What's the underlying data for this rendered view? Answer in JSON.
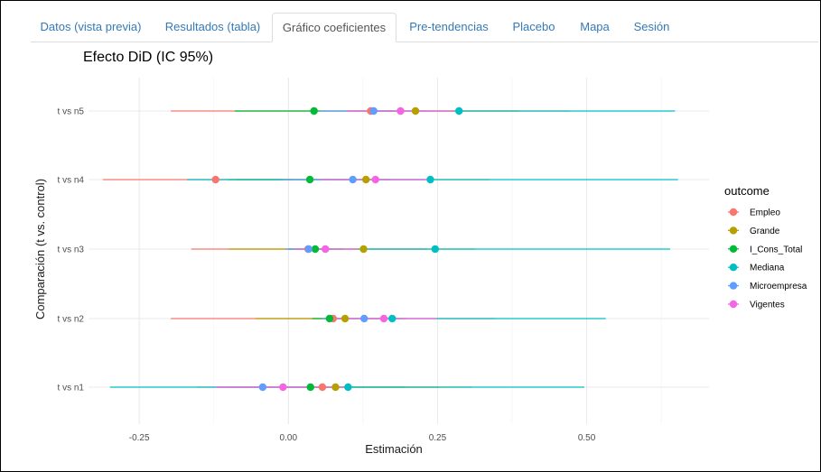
{
  "tabs": [
    {
      "label": "Datos (vista previa)",
      "active": false
    },
    {
      "label": "Resultados (tabla)",
      "active": false
    },
    {
      "label": "Gráfico coeficientes",
      "active": true
    },
    {
      "label": "Pre-tendencias",
      "active": false
    },
    {
      "label": "Placebo",
      "active": false
    },
    {
      "label": "Mapa",
      "active": false
    },
    {
      "label": "Sesión",
      "active": false
    }
  ],
  "chart_data": {
    "type": "scatter",
    "title": "Efecto DiD (IC 95%)",
    "xlabel": "Estimación",
    "ylabel": "Comparación (t vs. control)",
    "xlim": [
      -0.335,
      0.705
    ],
    "xticks": [
      -0.25,
      0.0,
      0.25,
      0.5
    ],
    "xtick_labels": [
      "-0.25",
      "0.00",
      "0.25",
      "0.50"
    ],
    "categories": [
      "t vs n5",
      "t vs n4",
      "t vs n3",
      "t vs n2",
      "t vs n1"
    ],
    "grid": true,
    "legend": {
      "title": "outcome",
      "position": "right"
    },
    "series": [
      {
        "name": "Empleo",
        "color": "#F8766D",
        "values": [
          0.138,
          -0.122,
          0.033,
          0.075,
          0.057
        ],
        "ci": [
          [
            -0.197,
            0.472
          ],
          [
            -0.311,
            0.007
          ],
          [
            -0.163,
            0.231
          ],
          [
            -0.197,
            0.347
          ],
          [
            -0.154,
            0.253
          ]
        ]
      },
      {
        "name": "Grande",
        "color": "#B79F00",
        "values": [
          0.213,
          0.13,
          0.126,
          0.095,
          0.079
        ],
        "ci": [
          [
            0.1,
            0.386
          ],
          [
            -0.087,
            0.337
          ],
          [
            -0.1,
            0.313
          ],
          [
            -0.055,
            0.19
          ],
          [
            -0.1,
            0.308
          ]
        ]
      },
      {
        "name": "I_Cons_Total",
        "color": "#00BA38",
        "values": [
          0.043,
          0.036,
          0.045,
          0.069,
          0.037
        ],
        "ci": [
          [
            -0.09,
            0.178
          ],
          [
            -0.1,
            0.172
          ],
          [
            0.0,
            0.093
          ],
          [
            0.04,
            0.098
          ],
          [
            -0.12,
            0.196
          ]
        ]
      },
      {
        "name": "Mediana",
        "color": "#00BFC4",
        "values": [
          0.286,
          0.238,
          0.246,
          0.174,
          0.1
        ],
        "ci": [
          [
            0.15,
            0.648
          ],
          [
            -0.17,
            0.653
          ],
          [
            0.0,
            0.64
          ],
          [
            0.06,
            0.532
          ],
          [
            -0.299,
            0.496
          ]
        ]
      },
      {
        "name": "Microempresa",
        "color": "#619CFF",
        "values": [
          0.143,
          0.108,
          0.034,
          0.127,
          -0.043
        ],
        "ci": [
          [
            0.053,
            0.233
          ],
          [
            -0.01,
            0.228
          ],
          [
            -0.005,
            0.075
          ],
          [
            0.057,
            0.198
          ],
          [
            -0.124,
            0.039
          ]
        ]
      },
      {
        "name": "Vigentes",
        "color": "#F564E3",
        "values": [
          0.188,
          0.146,
          0.062,
          0.16,
          -0.009
        ],
        "ci": [
          [
            0.098,
            0.278
          ],
          [
            0.053,
            0.239
          ],
          [
            0.008,
            0.116
          ],
          [
            0.072,
            0.248
          ],
          [
            -0.12,
            0.102
          ]
        ]
      }
    ]
  }
}
